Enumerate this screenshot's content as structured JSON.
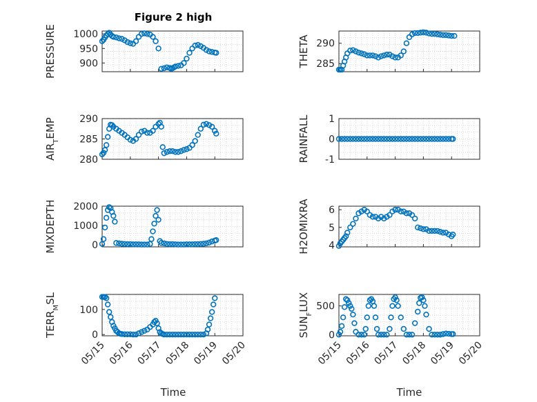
{
  "figure": {
    "title": "Figure 2 high",
    "xlabel": "Time"
  },
  "colors": {
    "marker": "#0072BD",
    "axis": "#262626",
    "grid": "#d9d9d9"
  },
  "chart_data": [
    {
      "type": "scatter",
      "ylabel": "PRESSURE",
      "ylim": [
        870,
        1010
      ],
      "yticks": [
        "1000",
        "950",
        "900"
      ],
      "xlim": [
        0,
        5
      ],
      "x": [
        0,
        0.05,
        0.1,
        0.15,
        0.2,
        0.25,
        0.3,
        0.35,
        0.4,
        0.5,
        0.6,
        0.7,
        0.8,
        0.9,
        1.0,
        1.1,
        1.2,
        1.3,
        1.4,
        1.5,
        1.6,
        1.7,
        1.8,
        1.9,
        2.0,
        2.1,
        2.2,
        2.3,
        2.4,
        2.45,
        2.5,
        2.55,
        2.6,
        2.7,
        2.8,
        2.9,
        3.0,
        3.1,
        3.2,
        3.3,
        3.4,
        3.5,
        3.6,
        3.7,
        3.8,
        3.9,
        4.0,
        4.05
      ],
      "y": [
        975,
        980,
        988,
        995,
        1000,
        1004,
        998,
        993,
        990,
        988,
        985,
        983,
        978,
        972,
        968,
        966,
        975,
        990,
        1000,
        1002,
        1000,
        998,
        990,
        975,
        950,
        880,
        882,
        885,
        883,
        880,
        882,
        885,
        888,
        890,
        892,
        900,
        915,
        935,
        950,
        960,
        962,
        958,
        952,
        945,
        940,
        938,
        936,
        935
      ]
    },
    {
      "type": "scatter",
      "ylabel": "THETA",
      "ylim": [
        283,
        293
      ],
      "yticks": [
        "290",
        "285"
      ],
      "xlim": [
        0,
        5
      ],
      "x": [
        0,
        0.05,
        0.1,
        0.15,
        0.2,
        0.25,
        0.3,
        0.4,
        0.5,
        0.6,
        0.7,
        0.8,
        0.9,
        1.0,
        1.1,
        1.2,
        1.3,
        1.4,
        1.5,
        1.6,
        1.7,
        1.8,
        1.9,
        2.0,
        2.1,
        2.2,
        2.3,
        2.4,
        2.5,
        2.6,
        2.7,
        2.8,
        2.9,
        3.0,
        3.1,
        3.2,
        3.3,
        3.4,
        3.5,
        3.6,
        3.7,
        3.8,
        3.9,
        4.0,
        4.1
      ],
      "y": [
        283.5,
        283.5,
        283.5,
        284.5,
        285.5,
        286.5,
        287.5,
        288.2,
        288.3,
        288.0,
        287.7,
        287.5,
        287.3,
        287.0,
        287.0,
        287.0,
        286.8,
        286.5,
        286.8,
        287.0,
        287.2,
        287.2,
        286.8,
        286.5,
        286.5,
        287.0,
        288.0,
        290.0,
        291.5,
        292.2,
        292.5,
        292.5,
        292.6,
        292.7,
        292.6,
        292.4,
        292.3,
        292.3,
        292.2,
        292.1,
        292.0,
        292.0,
        291.9,
        291.8,
        291.8
      ]
    },
    {
      "type": "scatter",
      "ylabel": "AIR_TEMP",
      "ylim": [
        280,
        290
      ],
      "yticks": [
        "290",
        "285",
        "280"
      ],
      "xlim": [
        0,
        5
      ],
      "x": [
        0,
        0.05,
        0.1,
        0.15,
        0.2,
        0.25,
        0.3,
        0.35,
        0.4,
        0.5,
        0.6,
        0.7,
        0.8,
        0.9,
        1.0,
        1.1,
        1.2,
        1.3,
        1.4,
        1.5,
        1.6,
        1.7,
        1.8,
        1.9,
        2.0,
        2.05,
        2.1,
        2.15,
        2.2,
        2.3,
        2.4,
        2.5,
        2.6,
        2.7,
        2.8,
        2.9,
        3.0,
        3.1,
        3.2,
        3.3,
        3.4,
        3.5,
        3.6,
        3.7,
        3.8,
        3.9,
        4.0,
        4.05
      ],
      "y": [
        281.2,
        281.6,
        282.3,
        283.5,
        285.5,
        287.5,
        288.5,
        288.4,
        288.0,
        287.5,
        287.0,
        286.5,
        286.0,
        285.4,
        284.8,
        284.5,
        285.0,
        286.0,
        286.8,
        287.0,
        286.5,
        286.5,
        287.0,
        288.0,
        288.7,
        289.0,
        288.0,
        283.0,
        281.5,
        281.8,
        282.0,
        282.0,
        281.8,
        281.8,
        282.0,
        282.3,
        282.5,
        282.8,
        283.5,
        284.5,
        286.0,
        287.5,
        288.5,
        288.7,
        288.4,
        288.0,
        287.0,
        286.3
      ]
    },
    {
      "type": "scatter",
      "ylabel": "RAINFALL",
      "ylim": [
        -1,
        1
      ],
      "yticks": [
        "1",
        "0",
        "-1"
      ],
      "xlim": [
        0,
        5
      ],
      "x": [
        0,
        0.1,
        0.2,
        0.3,
        0.4,
        0.5,
        0.6,
        0.7,
        0.8,
        0.9,
        1.0,
        1.1,
        1.2,
        1.3,
        1.4,
        1.5,
        1.6,
        1.7,
        1.8,
        1.9,
        2.0,
        2.1,
        2.2,
        2.3,
        2.4,
        2.5,
        2.6,
        2.7,
        2.8,
        2.9,
        3.0,
        3.1,
        3.2,
        3.3,
        3.4,
        3.5,
        3.6,
        3.7,
        3.8,
        3.9,
        4.0,
        4.05
      ],
      "y": [
        0,
        0,
        0,
        0,
        0,
        0,
        0,
        0,
        0,
        0,
        0,
        0,
        0,
        0,
        0,
        0,
        0,
        0,
        0,
        0,
        0,
        0,
        0,
        0,
        0,
        0,
        0,
        0,
        0,
        0,
        0,
        0,
        0,
        0,
        0,
        0,
        0,
        0,
        0,
        0,
        0,
        0
      ]
    },
    {
      "type": "scatter",
      "ylabel": "MIXDEPTH",
      "ylim": [
        -100,
        2000
      ],
      "yticks": [
        "2000",
        "1000",
        "0"
      ],
      "xlim": [
        0,
        5
      ],
      "x": [
        0,
        0.05,
        0.1,
        0.15,
        0.2,
        0.25,
        0.3,
        0.35,
        0.4,
        0.45,
        0.5,
        0.6,
        0.7,
        0.8,
        0.9,
        1.0,
        1.1,
        1.2,
        1.3,
        1.4,
        1.5,
        1.6,
        1.7,
        1.75,
        1.8,
        1.85,
        1.9,
        1.95,
        2.0,
        2.05,
        2.1,
        2.2,
        2.3,
        2.4,
        2.5,
        2.6,
        2.7,
        2.8,
        2.9,
        3.0,
        3.1,
        3.2,
        3.3,
        3.4,
        3.5,
        3.6,
        3.7,
        3.8,
        3.9,
        4.0,
        4.05
      ],
      "y": [
        50,
        300,
        900,
        1400,
        1800,
        1950,
        1900,
        1700,
        1500,
        1200,
        100,
        80,
        60,
        50,
        40,
        40,
        30,
        30,
        30,
        20,
        20,
        20,
        50,
        300,
        700,
        1100,
        1500,
        1800,
        1300,
        200,
        100,
        80,
        50,
        40,
        40,
        30,
        20,
        20,
        20,
        30,
        30,
        30,
        40,
        40,
        50,
        60,
        80,
        120,
        180,
        220,
        250
      ]
    },
    {
      "type": "scatter",
      "ylabel": "H2OMIXRA",
      "ylim": [
        3.9,
        6.2
      ],
      "yticks": [
        "6",
        "5",
        "4"
      ],
      "xlim": [
        0,
        5
      ],
      "x": [
        0,
        0.05,
        0.1,
        0.15,
        0.2,
        0.25,
        0.3,
        0.4,
        0.5,
        0.6,
        0.7,
        0.8,
        0.9,
        1.0,
        1.1,
        1.2,
        1.3,
        1.4,
        1.5,
        1.6,
        1.7,
        1.8,
        1.9,
        2.0,
        2.1,
        2.2,
        2.3,
        2.4,
        2.5,
        2.6,
        2.7,
        2.8,
        2.9,
        3.0,
        3.1,
        3.2,
        3.3,
        3.4,
        3.5,
        3.6,
        3.7,
        3.8,
        3.9,
        4.0,
        4.05
      ],
      "y": [
        3.95,
        4.1,
        4.2,
        4.3,
        4.4,
        4.5,
        4.7,
        5.0,
        5.2,
        5.5,
        5.8,
        5.9,
        6.0,
        5.9,
        5.7,
        5.6,
        5.6,
        5.5,
        5.6,
        5.5,
        5.6,
        5.7,
        5.9,
        6.0,
        6.0,
        5.9,
        5.9,
        5.8,
        5.8,
        5.7,
        5.5,
        5.0,
        4.95,
        4.9,
        4.9,
        4.8,
        4.8,
        4.8,
        4.8,
        4.75,
        4.7,
        4.7,
        4.6,
        4.5,
        4.6
      ]
    },
    {
      "type": "scatter",
      "ylabel": "TERR_MSL",
      "ylim": [
        -5,
        160
      ],
      "yticks": [
        "100",
        "0"
      ],
      "xlim": [
        0,
        5
      ],
      "x": [
        0,
        0.05,
        0.1,
        0.15,
        0.2,
        0.25,
        0.3,
        0.35,
        0.4,
        0.45,
        0.5,
        0.55,
        0.6,
        0.65,
        0.7,
        0.8,
        0.9,
        1.0,
        1.1,
        1.2,
        1.3,
        1.4,
        1.5,
        1.6,
        1.7,
        1.8,
        1.85,
        1.9,
        1.95,
        2.0,
        2.05,
        2.1,
        2.15,
        2.2,
        2.3,
        2.4,
        2.5,
        2.6,
        2.7,
        2.8,
        2.9,
        3.0,
        3.1,
        3.2,
        3.3,
        3.4,
        3.5,
        3.6,
        3.7,
        3.75,
        3.8,
        3.85,
        3.9,
        3.95,
        4.0
      ],
      "y": [
        150,
        150,
        150,
        145,
        120,
        90,
        70,
        50,
        35,
        25,
        15,
        10,
        5,
        3,
        2,
        1,
        1,
        1,
        0,
        0,
        5,
        10,
        15,
        20,
        30,
        40,
        50,
        55,
        45,
        25,
        10,
        5,
        2,
        0,
        0,
        0,
        0,
        0,
        0,
        0,
        0,
        0,
        0,
        0,
        0,
        0,
        0,
        0,
        5,
        20,
        40,
        65,
        90,
        120,
        145
      ]
    },
    {
      "type": "scatter",
      "ylabel": "SUN_FLUX",
      "ylim": [
        -20,
        700
      ],
      "yticks": [
        "500",
        "0"
      ],
      "xlim": [
        0,
        5
      ],
      "x": [
        0,
        0.05,
        0.1,
        0.15,
        0.2,
        0.25,
        0.3,
        0.35,
        0.4,
        0.45,
        0.5,
        0.55,
        0.6,
        0.7,
        0.8,
        0.9,
        0.95,
        1.0,
        1.05,
        1.1,
        1.15,
        1.2,
        1.25,
        1.3,
        1.35,
        1.4,
        1.5,
        1.6,
        1.7,
        1.8,
        1.85,
        1.9,
        1.95,
        2.0,
        2.05,
        2.1,
        2.2,
        2.3,
        2.4,
        2.5,
        2.6,
        2.7,
        2.8,
        2.85,
        2.9,
        2.95,
        3.0,
        3.05,
        3.1,
        3.2,
        3.3,
        3.4,
        3.5,
        3.6,
        3.7,
        3.8,
        3.9,
        4.0,
        4.05
      ],
      "y": [
        0,
        50,
        150,
        300,
        480,
        620,
        600,
        550,
        500,
        450,
        350,
        200,
        50,
        0,
        0,
        0,
        100,
        300,
        500,
        600,
        620,
        580,
        500,
        300,
        100,
        0,
        0,
        0,
        0,
        100,
        300,
        500,
        620,
        650,
        600,
        500,
        300,
        100,
        0,
        0,
        0,
        200,
        400,
        550,
        640,
        650,
        600,
        500,
        350,
        100,
        0,
        0,
        0,
        0,
        10,
        20,
        15,
        10,
        10
      ]
    }
  ],
  "xticks": [
    "05/15",
    "05/16",
    "05/17",
    "05/18",
    "05/19",
    "05/20"
  ]
}
